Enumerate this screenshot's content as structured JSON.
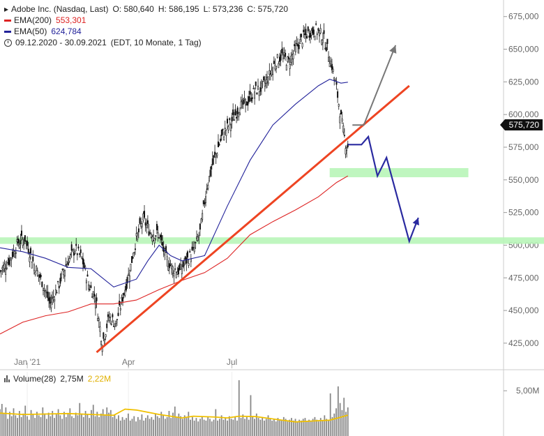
{
  "legend": {
    "title": "Adobe Inc. (Nasdaq, Last)",
    "open": "O: 580,640",
    "high": "H: 586,195",
    "low": "L: 573,236",
    "close": "C: 575,720",
    "ema200_label": "EMA(200)",
    "ema200_value": "553,301",
    "ema50_label": "EMA(50)",
    "ema50_value": "624,784",
    "range": "09.12.2020 - 30.09.2021",
    "period": "(EDT, 10 Monate, 1 Tag)"
  },
  "volume_legend": {
    "label": "Volume(28)",
    "value1": "2,75M",
    "value2": "2,22M"
  },
  "price_badge": "575,720",
  "colors": {
    "ema200": "#dd2222",
    "ema50": "#22229a",
    "trendline": "#ee4422",
    "zone": "#b8f5b8",
    "projection": "#2a2aa0",
    "up_arrow": "#777777",
    "volume_ma": "#f0c000"
  },
  "chart_data": {
    "type": "candlestick",
    "title": "Adobe Inc. (Nasdaq, Last)",
    "x_range": [
      "2020-12-09",
      "2021-09-30"
    ],
    "ylim": [
      410000,
      685000
    ],
    "y_ticks": [
      {
        "value": 425000,
        "label": "425,000"
      },
      {
        "value": 450000,
        "label": "450,000"
      },
      {
        "value": 475000,
        "label": "475,000"
      },
      {
        "value": 500000,
        "label": "500,000"
      },
      {
        "value": 525000,
        "label": "525,000"
      },
      {
        "value": 550000,
        "label": "550,000"
      },
      {
        "value": 575000,
        "label": "575,000"
      },
      {
        "value": 600000,
        "label": "600,000"
      },
      {
        "value": 625000,
        "label": "625,000"
      },
      {
        "value": 650000,
        "label": "650,000"
      },
      {
        "value": 675000,
        "label": "675,000"
      }
    ],
    "x_ticks": [
      {
        "day": 24,
        "label": "Jan '21"
      },
      {
        "day": 113,
        "label": "Apr"
      },
      {
        "day": 204,
        "label": "Jul"
      }
    ],
    "total_days": 308,
    "close_path": [
      [
        0,
        480000
      ],
      [
        8,
        488000
      ],
      [
        16,
        502000
      ],
      [
        22,
        505000
      ],
      [
        30,
        485000
      ],
      [
        38,
        470000
      ],
      [
        44,
        455000
      ],
      [
        52,
        470000
      ],
      [
        58,
        485000
      ],
      [
        66,
        497000
      ],
      [
        72,
        490000
      ],
      [
        78,
        470000
      ],
      [
        84,
        460000
      ],
      [
        90,
        425000
      ],
      [
        96,
        445000
      ],
      [
        102,
        440000
      ],
      [
        108,
        460000
      ],
      [
        114,
        480000
      ],
      [
        120,
        505000
      ],
      [
        126,
        520000
      ],
      [
        132,
        510000
      ],
      [
        140,
        508000
      ],
      [
        146,
        490000
      ],
      [
        152,
        482000
      ],
      [
        158,
        480000
      ],
      [
        164,
        488000
      ],
      [
        170,
        495000
      ],
      [
        176,
        510000
      ],
      [
        182,
        545000
      ],
      [
        188,
        565000
      ],
      [
        196,
        585000
      ],
      [
        204,
        595000
      ],
      [
        210,
        605000
      ],
      [
        218,
        610000
      ],
      [
        224,
        618000
      ],
      [
        230,
        620000
      ],
      [
        236,
        628000
      ],
      [
        242,
        640000
      ],
      [
        248,
        645000
      ],
      [
        254,
        640000
      ],
      [
        260,
        650000
      ],
      [
        266,
        658000
      ],
      [
        272,
        663000
      ],
      [
        278,
        665000
      ],
      [
        284,
        660000
      ],
      [
        288,
        650000
      ],
      [
        292,
        637000
      ],
      [
        296,
        620000
      ],
      [
        300,
        597000
      ],
      [
        304,
        578000
      ],
      [
        306,
        576000
      ]
    ],
    "ema200": [
      [
        0,
        432000
      ],
      [
        20,
        441000
      ],
      [
        40,
        446000
      ],
      [
        60,
        449000
      ],
      [
        80,
        455000
      ],
      [
        100,
        455000
      ],
      [
        120,
        458000
      ],
      [
        140,
        466000
      ],
      [
        160,
        473000
      ],
      [
        180,
        479000
      ],
      [
        200,
        490000
      ],
      [
        220,
        508000
      ],
      [
        240,
        518000
      ],
      [
        260,
        527000
      ],
      [
        280,
        537000
      ],
      [
        296,
        548000
      ],
      [
        306,
        553000
      ]
    ],
    "ema50": [
      [
        0,
        498000
      ],
      [
        20,
        495000
      ],
      [
        40,
        490000
      ],
      [
        60,
        483000
      ],
      [
        80,
        482000
      ],
      [
        100,
        468000
      ],
      [
        120,
        474000
      ],
      [
        130,
        488000
      ],
      [
        140,
        500000
      ],
      [
        150,
        492000
      ],
      [
        160,
        488000
      ],
      [
        180,
        492000
      ],
      [
        200,
        530000
      ],
      [
        220,
        565000
      ],
      [
        240,
        592000
      ],
      [
        260,
        608000
      ],
      [
        280,
        622000
      ],
      [
        290,
        627000
      ],
      [
        300,
        624000
      ],
      [
        306,
        624784
      ]
    ],
    "trendline": [
      [
        85,
        418000
      ],
      [
        360,
        622000
      ]
    ],
    "zones": [
      {
        "day_start": 0,
        "day_end": 480,
        "y_low": 501000,
        "y_high": 506000
      },
      {
        "day_start": 290,
        "day_end": 412,
        "y_low": 552000,
        "y_high": 559000
      }
    ],
    "projection_path": [
      [
        306,
        577000
      ],
      [
        318,
        577000
      ],
      [
        324,
        583000
      ],
      [
        332,
        553000
      ],
      [
        340,
        567000
      ],
      [
        360,
        503000
      ],
      [
        368,
        521000
      ]
    ],
    "up_arrow_path": [
      [
        310,
        592000
      ],
      [
        320,
        592000
      ],
      [
        348,
        653000
      ]
    ],
    "volume": {
      "ylim": [
        0,
        7000000
      ],
      "tick": {
        "value": 5000000,
        "label": "5,00M"
      },
      "series": [
        2.9,
        3.5,
        2.4,
        3.1,
        1.8,
        2.6,
        2.1,
        3.0,
        2.2,
        1.9,
        2.7,
        2.0,
        2.4,
        3.3,
        2.1,
        1.7,
        2.8,
        2.3,
        1.9,
        2.6,
        2.2,
        2.0,
        3.1,
        2.4,
        1.8,
        2.5,
        2.1,
        2.7,
        1.9,
        2.3,
        2.9,
        2.2,
        1.8,
        2.6,
        2.0,
        2.4,
        3.0,
        2.1,
        1.9,
        2.5,
        2.2,
        3.6,
        2.4,
        2.0,
        2.7,
        2.3,
        1.9,
        2.8,
        3.4,
        2.1,
        2.6,
        2.0,
        2.4,
        2.9,
        2.2,
        3.1,
        2.5,
        2.8,
        2.0,
        2.3,
        1.8,
        2.2,
        1.6,
        2.0,
        1.7,
        1.9,
        2.4,
        1.6,
        1.8,
        2.1,
        1.5,
        2.0,
        1.7,
        2.3,
        1.6,
        1.9,
        2.2,
        1.8,
        2.0,
        1.7,
        2.4,
        2.1,
        1.9,
        2.6,
        2.2,
        1.8,
        2.0,
        2.7,
        1.9,
        2.5,
        3.2,
        2.0,
        2.4,
        2.1,
        1.8,
        2.2,
        1.9,
        2.6,
        1.7,
        2.0,
        1.6,
        1.9,
        1.5,
        1.8,
        2.1,
        1.7,
        1.6,
        2.0,
        1.8,
        1.5,
        1.7,
        2.9,
        1.6,
        1.8,
        2.2,
        1.7,
        1.9,
        1.6,
        2.1,
        1.8,
        1.7,
        2.0,
        1.6,
        6.2,
        1.9,
        2.3,
        1.8,
        2.0,
        1.7,
        4.5,
        2.1,
        1.8,
        2.4,
        1.9,
        1.7,
        2.0,
        1.6,
        1.8,
        2.2,
        1.9,
        1.6,
        1.8,
        1.5,
        1.9,
        1.7,
        1.6,
        2.0,
        1.8,
        1.5,
        1.7,
        1.9,
        1.6,
        1.8,
        1.5,
        1.7,
        1.6,
        1.8,
        1.9,
        1.5,
        1.7,
        1.6,
        1.8,
        2.0,
        1.7,
        1.5,
        1.9,
        1.6,
        2.2,
        1.8,
        1.7,
        4.7,
        2.0,
        2.4,
        3.0,
        5.5,
        3.6,
        2.8,
        4.2,
        2.6,
        3.1
      ],
      "ma": [
        [
          0,
          2.45
        ],
        [
          20,
          2.3
        ],
        [
          40,
          2.35
        ],
        [
          60,
          2.4
        ],
        [
          80,
          2.3
        ],
        [
          100,
          2.2
        ],
        [
          110,
          2.9
        ],
        [
          120,
          2.8
        ],
        [
          140,
          2.3
        ],
        [
          160,
          1.9
        ],
        [
          170,
          2.1
        ],
        [
          190,
          2.0
        ],
        [
          200,
          1.9
        ],
        [
          210,
          2.1
        ],
        [
          225,
          2.05
        ],
        [
          245,
          1.7
        ],
        [
          260,
          1.45
        ],
        [
          275,
          1.55
        ],
        [
          290,
          1.65
        ],
        [
          300,
          2.0
        ],
        [
          306,
          2.22
        ]
      ]
    }
  }
}
